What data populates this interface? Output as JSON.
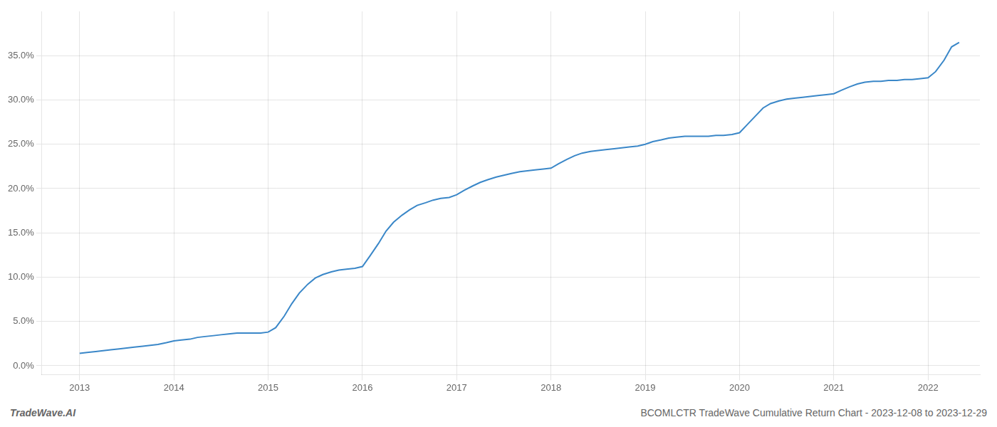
{
  "chart_data": {
    "type": "line",
    "title": "BCOMLCTR TradeWave Cumulative Return Chart - 2023-12-08 to 2023-12-29",
    "annotations": [
      "TradeWave.AI"
    ],
    "color": "#3a87c8",
    "grid": true,
    "xlim": [
      2012.6,
      2022.55
    ],
    "ylim": [
      -0.01,
      0.4
    ],
    "xticks": [
      2013,
      2014,
      2015,
      2016,
      2017,
      2018,
      2019,
      2020,
      2021,
      2022
    ],
    "yticks": [
      {
        "value": 0.0,
        "label": "0.0%"
      },
      {
        "value": 0.05,
        "label": "5.0%"
      },
      {
        "value": 0.1,
        "label": "10.0%"
      },
      {
        "value": 0.15,
        "label": "15.0%"
      },
      {
        "value": 0.2,
        "label": "20.0%"
      },
      {
        "value": 0.25,
        "label": "25.0%"
      },
      {
        "value": 0.3,
        "label": "30.0%"
      },
      {
        "value": 0.35,
        "label": "35.0%"
      }
    ],
    "x": [
      2013.0,
      2013.08,
      2013.17,
      2013.25,
      2013.33,
      2013.42,
      2013.5,
      2013.58,
      2013.67,
      2013.75,
      2013.83,
      2013.92,
      2014.0,
      2014.08,
      2014.17,
      2014.25,
      2014.33,
      2014.42,
      2014.5,
      2014.58,
      2014.67,
      2014.75,
      2014.83,
      2014.92,
      2015.0,
      2015.08,
      2015.17,
      2015.25,
      2015.33,
      2015.42,
      2015.5,
      2015.58,
      2015.67,
      2015.75,
      2015.83,
      2015.92,
      2016.0,
      2016.08,
      2016.17,
      2016.25,
      2016.33,
      2016.42,
      2016.5,
      2016.58,
      2016.67,
      2016.75,
      2016.83,
      2016.92,
      2017.0,
      2017.08,
      2017.17,
      2017.25,
      2017.33,
      2017.42,
      2017.5,
      2017.58,
      2017.67,
      2017.75,
      2017.83,
      2017.92,
      2018.0,
      2018.08,
      2018.17,
      2018.25,
      2018.33,
      2018.42,
      2018.5,
      2018.58,
      2018.67,
      2018.75,
      2018.83,
      2018.92,
      2019.0,
      2019.08,
      2019.17,
      2019.25,
      2019.33,
      2019.42,
      2019.5,
      2019.58,
      2019.67,
      2019.75,
      2019.83,
      2019.92,
      2020.0,
      2020.08,
      2020.17,
      2020.25,
      2020.33,
      2020.42,
      2020.5,
      2020.58,
      2020.67,
      2020.75,
      2020.83,
      2020.92,
      2021.0,
      2021.08,
      2021.17,
      2021.25,
      2021.33,
      2021.42,
      2021.5,
      2021.58,
      2021.67,
      2021.75,
      2021.83,
      2021.92,
      2022.0,
      2022.08,
      2022.17,
      2022.25,
      2022.33
    ],
    "values": [
      0.014,
      0.015,
      0.016,
      0.017,
      0.018,
      0.019,
      0.02,
      0.021,
      0.022,
      0.023,
      0.024,
      0.026,
      0.028,
      0.029,
      0.03,
      0.032,
      0.033,
      0.034,
      0.035,
      0.036,
      0.037,
      0.037,
      0.037,
      0.037,
      0.038,
      0.043,
      0.056,
      0.07,
      0.082,
      0.092,
      0.099,
      0.103,
      0.106,
      0.108,
      0.109,
      0.11,
      0.112,
      0.124,
      0.138,
      0.152,
      0.162,
      0.17,
      0.176,
      0.181,
      0.184,
      0.187,
      0.189,
      0.19,
      0.193,
      0.198,
      0.203,
      0.207,
      0.21,
      0.213,
      0.215,
      0.217,
      0.219,
      0.22,
      0.221,
      0.222,
      0.223,
      0.228,
      0.233,
      0.237,
      0.24,
      0.242,
      0.243,
      0.244,
      0.245,
      0.246,
      0.247,
      0.248,
      0.25,
      0.253,
      0.255,
      0.257,
      0.258,
      0.259,
      0.259,
      0.259,
      0.259,
      0.26,
      0.26,
      0.261,
      0.263,
      0.272,
      0.282,
      0.291,
      0.296,
      0.299,
      0.301,
      0.302,
      0.303,
      0.304,
      0.305,
      0.306,
      0.307,
      0.311,
      0.315,
      0.318,
      0.32,
      0.321,
      0.321,
      0.322,
      0.322,
      0.323,
      0.323,
      0.324,
      0.325,
      0.332,
      0.345,
      0.36,
      0.365
    ]
  }
}
